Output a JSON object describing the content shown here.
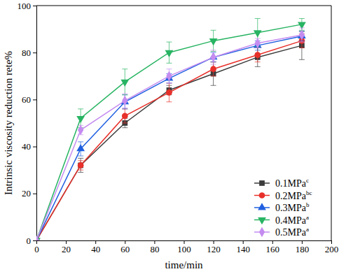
{
  "chart_data": {
    "type": "line",
    "x_label": "time/min",
    "y_label": "Intrinsic viscosity reduction rete%",
    "x": [
      0,
      30,
      60,
      90,
      120,
      150,
      180
    ],
    "xlim": [
      0,
      200
    ],
    "xticks": [
      0,
      20,
      40,
      60,
      80,
      100,
      120,
      140,
      160,
      180,
      200
    ],
    "ylim": [
      0,
      100
    ],
    "yticks": [
      0,
      20,
      40,
      60,
      80,
      100
    ],
    "legend": "bottom-right",
    "series": [
      {
        "name": "0.1MPa",
        "letters": "c",
        "color": "#3c3c3c",
        "marker": "square",
        "values": [
          0,
          32,
          50,
          64,
          71,
          78,
          83
        ],
        "errors": [
          0,
          3,
          2,
          2,
          5,
          4,
          6
        ]
      },
      {
        "name": "0.2MPa",
        "letters": "bc",
        "color": "#e8302a",
        "marker": "circle",
        "values": [
          0,
          32,
          53,
          63,
          73,
          79,
          85
        ],
        "errors": [
          0,
          2,
          3,
          4,
          3,
          3,
          3
        ]
      },
      {
        "name": "0.3MPa",
        "letters": "b",
        "color": "#1f5fe0",
        "marker": "triangle-up",
        "values": [
          0,
          39,
          59,
          69,
          78,
          83,
          87
        ],
        "errors": [
          0,
          3,
          3,
          2,
          2,
          2,
          2
        ]
      },
      {
        "name": "0.4MPa",
        "letters": "a",
        "color": "#28b463",
        "marker": "triangle-down",
        "values": [
          0,
          52,
          67.5,
          80,
          85,
          88.5,
          92
        ],
        "errors": [
          0,
          4,
          5.5,
          4.5,
          4.5,
          6,
          2.5
        ]
      },
      {
        "name": "0.5MPa",
        "letters": "a",
        "color": "#c58cf0",
        "marker": "diamond",
        "values": [
          0,
          47,
          59.5,
          70,
          78,
          84,
          87.5
        ],
        "errors": [
          0,
          2,
          3,
          3,
          3,
          2,
          3
        ]
      }
    ]
  }
}
